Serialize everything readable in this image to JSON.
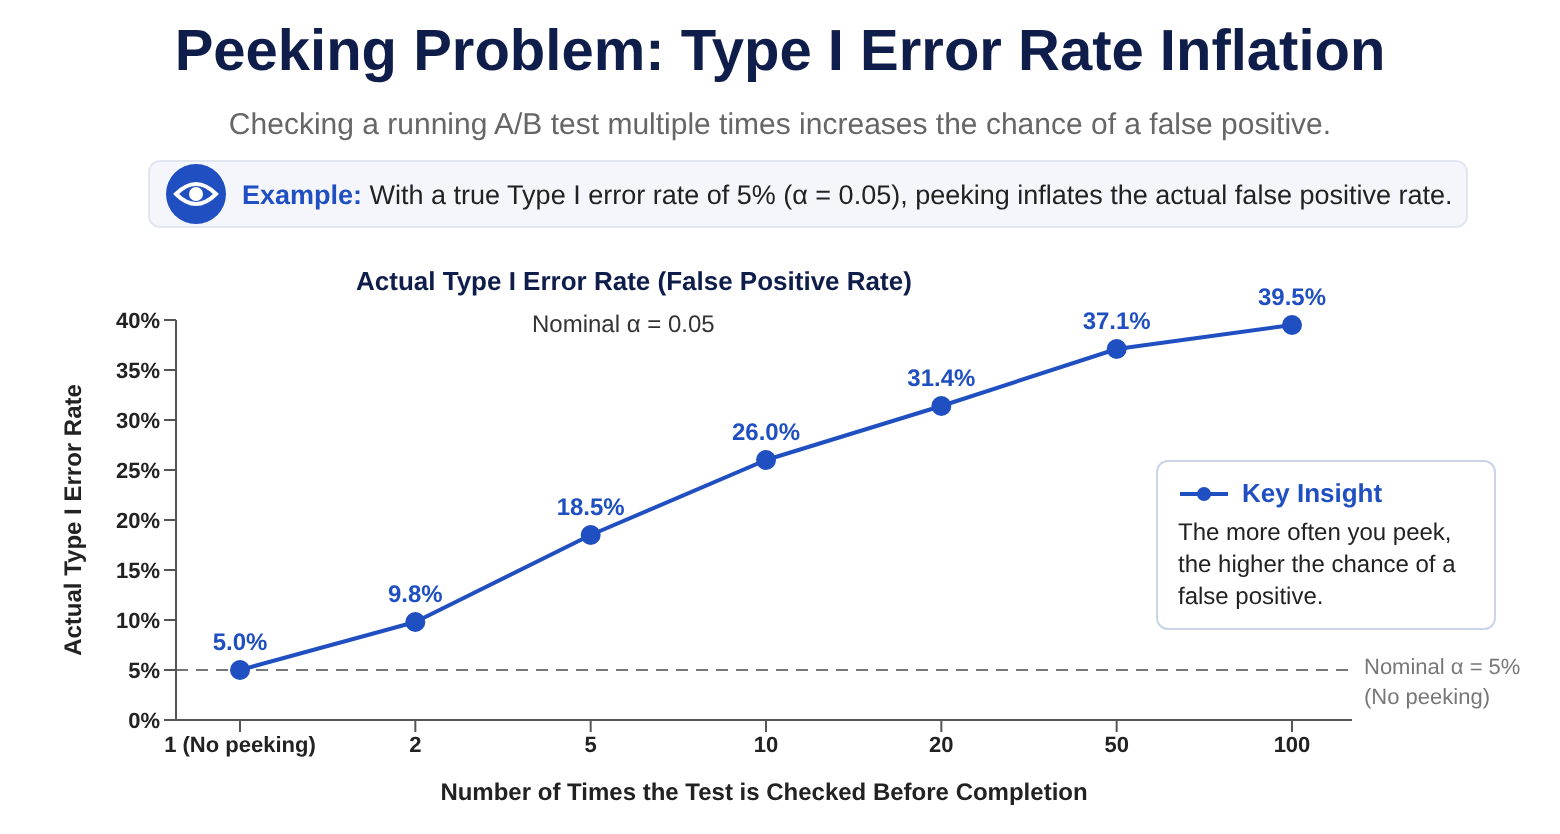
{
  "chart_data": {
    "type": "line",
    "title": "Peeking Problem: Type I Error Rate Inflation",
    "subtitle": "Checking a running A/B test multiple times increases the chance of a false positive.",
    "annotations": [
      "Example: With a true Type I error rate of 5% (α = 0.05), peeking inflates the actual false positive rate.",
      "Actual Type I Error Rate (False Positive Rate)",
      "Nominal α = 0.05",
      "The more often you peek, the higher the chance of a false positive."
    ],
    "xlabel": "Number of Times the Test is Checked Before Completion",
    "ylabel": "Actual Type I Error Rate",
    "categories": [
      "1 (No peeking)",
      "2",
      "5",
      "10",
      "20",
      "50",
      "100"
    ],
    "series": [
      {
        "name": "Key Insight",
        "color": "#1f4fc1",
        "values": [
          5.0,
          9.8,
          18.5,
          26.0,
          31.4,
          37.1,
          39.5
        ],
        "value_labels": [
          "5.0%",
          "9.8%",
          "18.5%",
          "26.0%",
          "31.4%",
          "37.1%",
          "39.5%"
        ]
      }
    ],
    "ylim": [
      0,
      40
    ],
    "yticks": [
      {
        "value": 0,
        "label": "0%"
      },
      {
        "value": 5,
        "label": "5%"
      },
      {
        "value": 10,
        "label": "10%"
      },
      {
        "value": 15,
        "label": "15%"
      },
      {
        "value": 20,
        "label": "20%"
      },
      {
        "value": 25,
        "label": "25%"
      },
      {
        "value": 30,
        "label": "30%"
      },
      {
        "value": 35,
        "label": "35%"
      },
      {
        "value": 40,
        "label": "40%"
      }
    ],
    "ref_lines": [
      {
        "axis": "y",
        "value": 5,
        "label": "Nominal α = 5%\n(No peeking)",
        "color": "#777777",
        "line_style": "dashed"
      }
    ],
    "grid": false,
    "legend": "right",
    "marker": "circle",
    "line_style": "solid"
  }
}
